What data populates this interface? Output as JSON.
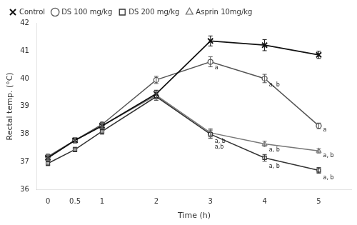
{
  "chart_data": {
    "type": "line",
    "xlabel": "Time (h)",
    "ylabel": "Rectal temp. (°C)",
    "x": [
      0,
      0.5,
      1,
      2,
      3,
      4,
      5
    ],
    "series": [
      {
        "name": "Control",
        "color": "#111111",
        "marker": "x",
        "values": [
          37.15,
          37.78,
          38.3,
          39.45,
          41.35,
          41.2,
          40.85
        ],
        "errors": [
          0.08,
          0.1,
          0.1,
          0.13,
          0.18,
          0.2,
          0.13
        ]
      },
      {
        "name": "DS 100 mg/kg",
        "color": "#555555",
        "marker": "circle",
        "values": [
          37.2,
          37.78,
          38.35,
          39.95,
          40.6,
          40.0,
          38.3
        ],
        "errors": [
          0.08,
          0.1,
          0.08,
          0.13,
          0.18,
          0.15,
          0.1
        ]
      },
      {
        "name": "DS 200 mg/kg",
        "color": "#333333",
        "marker": "square",
        "values": [
          36.95,
          37.45,
          38.1,
          39.35,
          38.0,
          37.15,
          36.7
        ],
        "errors": [
          0.08,
          0.08,
          0.1,
          0.13,
          0.15,
          0.12,
          0.1
        ]
      },
      {
        "name": "Asprin 10mg/kg",
        "color": "#777777",
        "marker": "triangle",
        "values": [
          37.15,
          37.78,
          38.3,
          39.4,
          38.05,
          37.65,
          37.4
        ],
        "errors": [
          0.08,
          0.1,
          0.08,
          0.13,
          0.15,
          0.1,
          0.08
        ]
      }
    ],
    "xlim": [
      -0.2,
      5.6
    ],
    "xticks": [
      0,
      0.5,
      1,
      2,
      3,
      4,
      5
    ],
    "ylim": [
      36,
      42
    ],
    "yticks": [
      36,
      37,
      38,
      39,
      40,
      41,
      42
    ],
    "grid": false,
    "legend": "upper left",
    "annotations": [
      {
        "x": 3.08,
        "y": 40.32,
        "text": "a"
      },
      {
        "x": 3.08,
        "y": 37.68,
        "text": "a, b"
      },
      {
        "x": 3.08,
        "y": 37.48,
        "text": "a,b"
      },
      {
        "x": 4.08,
        "y": 39.72,
        "text": "a, b"
      },
      {
        "x": 4.08,
        "y": 37.38,
        "text": "a, b"
      },
      {
        "x": 4.08,
        "y": 36.78,
        "text": "a, b"
      },
      {
        "x": 5.08,
        "y": 38.1,
        "text": "a"
      },
      {
        "x": 5.08,
        "y": 37.18,
        "text": "a, b"
      },
      {
        "x": 5.08,
        "y": 36.38,
        "text": "a, b"
      }
    ]
  }
}
